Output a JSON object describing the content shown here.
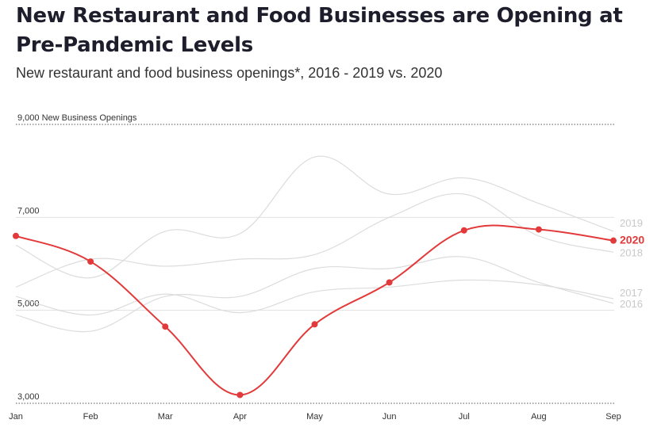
{
  "title": "New Restaurant and Food Businesses are Opening at Pre-Pandemic Levels",
  "subtitle": "New restaurant and food business openings*, 2016 - 2019 vs. 2020",
  "colors": {
    "highlight": "#e23a3a",
    "background_series": "#dcdcdc",
    "grid": "#e0e0e0"
  },
  "chart_data": {
    "type": "line",
    "title": "New Restaurant and Food Businesses are Opening at Pre-Pandemic Levels",
    "subtitle": "New restaurant and food business openings*, 2016 - 2019 vs. 2020",
    "categories": [
      "Jan",
      "Feb",
      "Mar",
      "Apr",
      "May",
      "Jun",
      "Jul",
      "Aug",
      "Sep"
    ],
    "ylim": [
      3000,
      9000
    ],
    "yticks": [
      {
        "value": 9000,
        "label": "9,000 New Business Openings"
      },
      {
        "value": 7000,
        "label": "7,000"
      },
      {
        "value": 5000,
        "label": "5,000"
      },
      {
        "value": 3000,
        "label": "3,000"
      }
    ],
    "grid": true,
    "series": [
      {
        "name": "2016",
        "highlight": false,
        "values": [
          4900,
          4550,
          5300,
          5300,
          5900,
          5900,
          6150,
          5600,
          5150
        ]
      },
      {
        "name": "2017",
        "highlight": false,
        "values": [
          5300,
          4900,
          5350,
          4950,
          5400,
          5500,
          5650,
          5550,
          5250
        ]
      },
      {
        "name": "2018",
        "highlight": false,
        "values": [
          5500,
          6100,
          5950,
          6100,
          6200,
          7000,
          7500,
          6600,
          6250
        ]
      },
      {
        "name": "2019",
        "highlight": false,
        "values": [
          6400,
          5700,
          6700,
          6650,
          8300,
          7500,
          7850,
          7300,
          6700
        ]
      },
      {
        "name": "2020",
        "highlight": true,
        "values": [
          6600,
          6050,
          4650,
          3180,
          4700,
          5600,
          6720,
          6740,
          6500
        ]
      }
    ]
  }
}
